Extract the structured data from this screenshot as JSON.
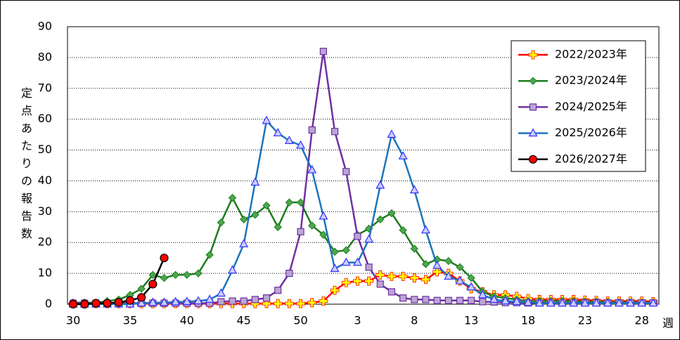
{
  "chart_data": {
    "type": "line",
    "y_label": "定点あたりの報告数",
    "x_label": "週",
    "categories": [
      30,
      null,
      null,
      null,
      null,
      35,
      null,
      null,
      null,
      null,
      40,
      null,
      null,
      null,
      null,
      45,
      null,
      null,
      null,
      null,
      50,
      null,
      null,
      null,
      null,
      3,
      null,
      null,
      null,
      null,
      8,
      null,
      null,
      null,
      null,
      13,
      null,
      null,
      null,
      null,
      18,
      null,
      null,
      null,
      null,
      23,
      null,
      null,
      null,
      null,
      28,
      null
    ],
    "ylim": [
      0,
      90
    ],
    "yticks": [
      0,
      10,
      20,
      30,
      40,
      50,
      60,
      70,
      80,
      90
    ],
    "grid": true,
    "legend": "upper right",
    "series": [
      {
        "name": "2022/2023年",
        "color": "#ff0000",
        "marker": "plus",
        "marker_color": "#ffff00",
        "values": [
          0.2,
          0.2,
          0.2,
          0.2,
          0.2,
          0.2,
          0.2,
          0.2,
          0.2,
          0.2,
          0.2,
          0.2,
          0.2,
          0.2,
          0.2,
          0.2,
          0.2,
          0.2,
          0.2,
          0.2,
          0.2,
          0.5,
          1,
          4.5,
          7,
          7.5,
          7.5,
          9.5,
          9,
          9,
          8.5,
          8,
          10.5,
          10,
          7.5,
          5,
          4,
          3,
          3,
          2.5,
          1.8,
          1.5,
          1.5,
          1.5,
          1.5,
          1.3,
          1.2,
          1,
          1,
          1,
          1,
          0.8
        ]
      },
      {
        "name": "2023/2024年",
        "color": "#1e7d1e",
        "marker": "diamond",
        "marker_color": "#4ea64e",
        "values": [
          0.5,
          0.5,
          0.5,
          1,
          1.5,
          3,
          5,
          9.5,
          8.5,
          9.5,
          9.5,
          10,
          16,
          26.5,
          34.5,
          27.5,
          29,
          32,
          25,
          33,
          33,
          25.5,
          22.5,
          17,
          17.5,
          22.5,
          24.5,
          27.5,
          29.5,
          24,
          18,
          13,
          14.5,
          14,
          12,
          8.5,
          4,
          2.5,
          2,
          1.5,
          1,
          1,
          1,
          1,
          1,
          0.8,
          0.8,
          0.7,
          0.6,
          0.6,
          0.5,
          0.5
        ]
      },
      {
        "name": "2024/2025年",
        "color": "#7030a0",
        "marker": "square",
        "marker_color": "#b9a6d6",
        "values": [
          0.3,
          0.3,
          0.3,
          0.3,
          0.3,
          0.3,
          0.3,
          0.3,
          0.3,
          0.3,
          0.3,
          0.3,
          0.3,
          0.8,
          1,
          1,
          1.5,
          2,
          4.5,
          10,
          23.5,
          56.5,
          82,
          56,
          43,
          22,
          12,
          6.5,
          4,
          2,
          1.5,
          1.5,
          1.2,
          1.2,
          1.2,
          1.2,
          0.8,
          0.7,
          0.5,
          0.5,
          0.4,
          0.4,
          0.4,
          0.4,
          0.4,
          0.4,
          0.4,
          0.4,
          0.4,
          0.4,
          0.4,
          0.4
        ]
      },
      {
        "name": "2025/2026年",
        "color": "#1b75bb",
        "marker": "triangle",
        "marker_color": "#ccccff",
        "values": [
          0,
          0,
          0,
          0,
          0,
          0,
          0.3,
          0.5,
          0.5,
          0.7,
          0.8,
          1,
          1.5,
          3.5,
          11,
          19.5,
          39.5,
          59.5,
          55.5,
          53,
          51.5,
          43.5,
          28.5,
          11.5,
          13.5,
          13.5,
          21,
          38.5,
          55,
          48,
          37,
          24,
          12.5,
          9,
          7.5,
          5.5,
          3,
          1.5,
          1,
          0.8,
          0.5,
          0.3,
          0.3,
          0.3,
          0.3,
          0.3,
          0.3,
          0.3,
          0.3,
          0.3,
          0.3,
          0.3
        ]
      },
      {
        "name": "2026/2027年",
        "color": "#000000",
        "marker": "circle",
        "marker_color": "#ff0000",
        "values": [
          0,
          0,
          0.3,
          0.3,
          0.6,
          1.2,
          2.2,
          6.5,
          15,
          null,
          null,
          null,
          null,
          null,
          null,
          null,
          null,
          null,
          null,
          null,
          null,
          null,
          null,
          null,
          null,
          null,
          null,
          null,
          null,
          null,
          null,
          null,
          null,
          null,
          null,
          null,
          null,
          null,
          null,
          null,
          null,
          null,
          null,
          null,
          null,
          null,
          null,
          null,
          null,
          null,
          null,
          null
        ]
      }
    ]
  }
}
